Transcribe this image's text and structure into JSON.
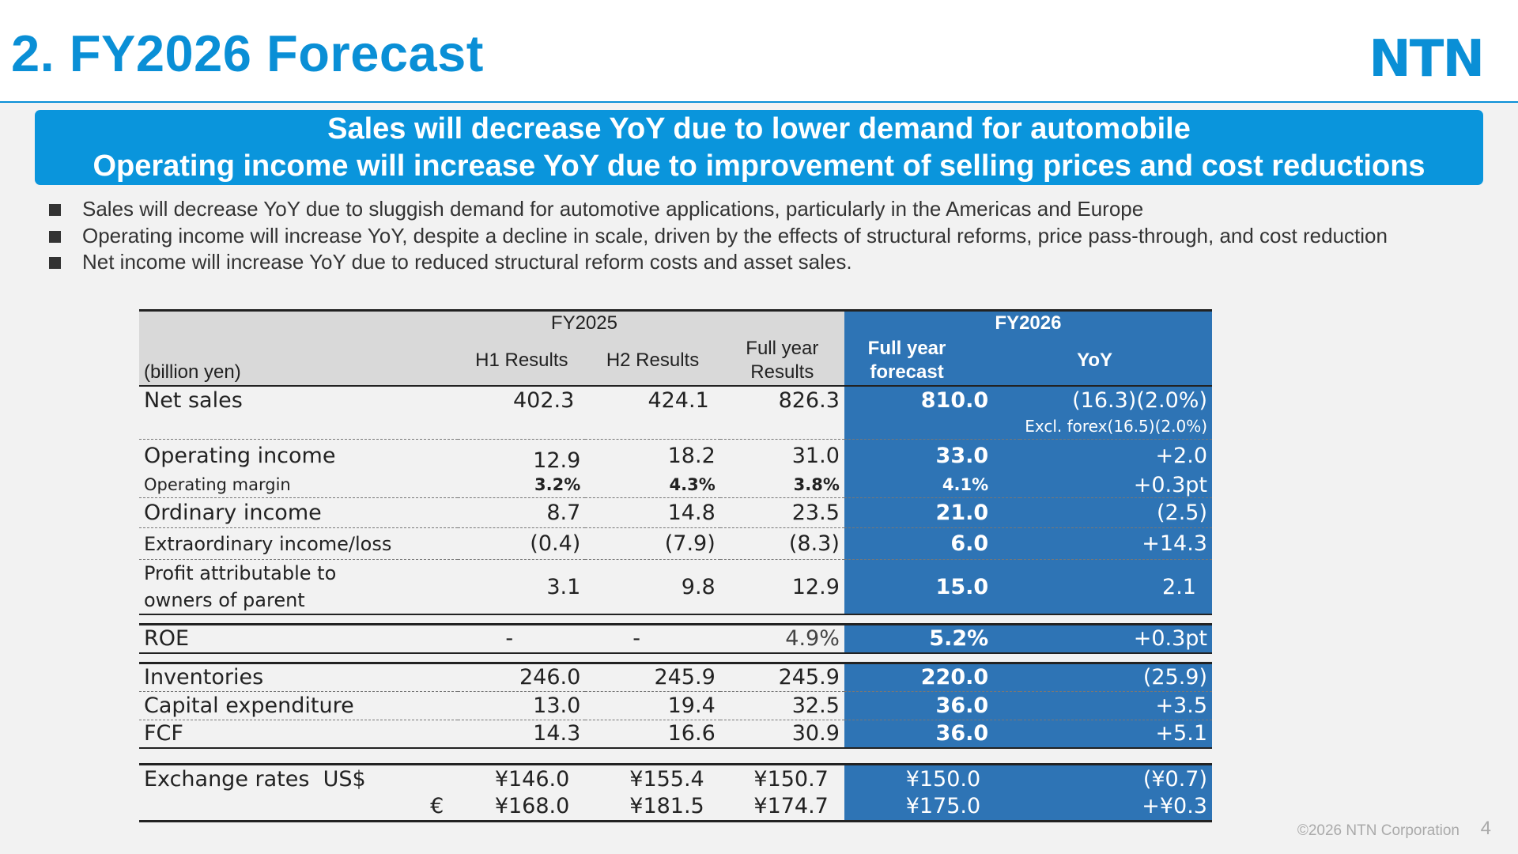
{
  "title": "2. FY2026 Forecast",
  "logo_text": "NTN",
  "banner": {
    "line1": "Sales will decrease YoY due to lower demand for automobile",
    "line2": "Operating income will increase YoY due to improvement of selling prices and cost reductions"
  },
  "bullets": [
    "Sales will decrease YoY due to sluggish demand for automotive applications, particularly in the Americas and Europe",
    "Operating income will increase YoY, despite a decline in scale, driven by the effects of structural reforms, price pass-through, and cost reduction",
    "Net income will increase YoY due to reduced structural reform costs and asset sales."
  ],
  "table": {
    "unit": "(billion yen)",
    "fy2025": "FY2025",
    "fy2026": "FY2026",
    "col_h1": "H1 Results",
    "col_h2": "H2 Results",
    "col_full_l1": "Full year",
    "col_full_l2": "Results",
    "col_fc_l1": "Full year",
    "col_fc_l2": "forecast",
    "col_yoy": "YoY",
    "net_sales": {
      "label": "Net sales",
      "h1": "402.3",
      "h2": "424.1",
      "full": "826.3",
      "fc": "810.0",
      "yoy": "(16.3)(2.0%)",
      "note": "Excl. forex(16.5)(2.0%)"
    },
    "op_income": {
      "label": "Operating income",
      "h1": "12.9",
      "h2": "18.2",
      "full": "31.0",
      "fc": "33.0",
      "yoy": "+2.0"
    },
    "op_margin": {
      "label": "Operating margin",
      "h1": "3.2%",
      "h2": "4.3%",
      "full": "3.8%",
      "fc": "4.1%",
      "yoy": "+0.3pt"
    },
    "ordinary": {
      "label": "Ordinary income",
      "h1": "8.7",
      "h2": "14.8",
      "full": "23.5",
      "fc": "21.0",
      "yoy": "(2.5)"
    },
    "extraordinary": {
      "label": "Extraordinary income/loss",
      "h1": "(0.4)",
      "h2": "(7.9)",
      "full": "(8.3)",
      "fc": "6.0",
      "yoy": "+14.3"
    },
    "profit": {
      "label1": "Profit attributable to",
      "label2": "owners of parent",
      "h1": "3.1",
      "h2": "9.8",
      "full": "12.9",
      "fc": "15.0",
      "yoy": "2.1"
    },
    "roe": {
      "label": "ROE",
      "h1": "-",
      "h2": "-",
      "full": "4.9%",
      "fc": "5.2%",
      "yoy": "+0.3pt"
    },
    "inventories": {
      "label": "Inventories",
      "h1": "246.0",
      "h2": "245.9",
      "full": "245.9",
      "fc": "220.0",
      "yoy": "(25.9)"
    },
    "capex": {
      "label": "Capital expenditure",
      "h1": "13.0",
      "h2": "19.4",
      "full": "32.5",
      "fc": "36.0",
      "yoy": "+3.5"
    },
    "fcf": {
      "label": "FCF",
      "h1": "14.3",
      "h2": "16.6",
      "full": "30.9",
      "fc": "36.0",
      "yoy": "+5.1"
    },
    "fx_usd": {
      "label": "Exchange rates  US$",
      "h1": "¥146.0",
      "h2": "¥155.4",
      "full": "¥150.7",
      "fc": "¥150.0",
      "yoy": "(¥0.7)"
    },
    "fx_eur": {
      "label": "€",
      "h1": "¥168.0",
      "h2": "¥181.5",
      "full": "¥174.7",
      "fc": "¥175.0",
      "yoy": "+¥0.3"
    }
  },
  "copyright": "©2026 NTN Corporation",
  "page_number": "4"
}
